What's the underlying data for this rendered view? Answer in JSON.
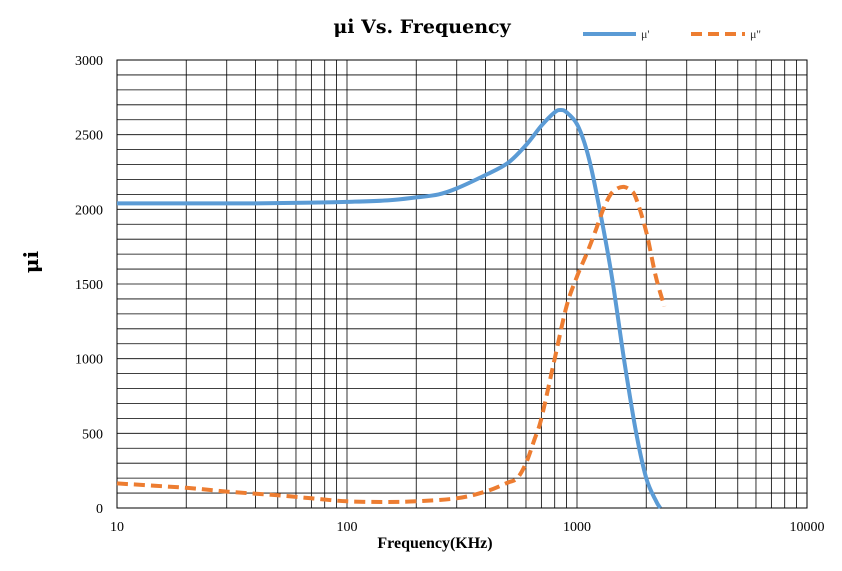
{
  "chart_data": {
    "type": "line",
    "title": "μi Vs. Frequency",
    "xlabel": "Frequency(KHz)",
    "ylabel": "μi",
    "xscale": "log",
    "xlim": [
      10,
      10000
    ],
    "ylim": [
      0,
      3000
    ],
    "x_tick_labels": [
      "10",
      "100",
      "1000",
      "10000"
    ],
    "y_tick_labels": [
      "0",
      "500",
      "1000",
      "1500",
      "2000",
      "2500",
      "3000"
    ],
    "grid": true,
    "legend_position": "top-right",
    "series": [
      {
        "name": "μ'",
        "color": "#5B9BD5",
        "style": "solid",
        "x": [
          10,
          20,
          40,
          70,
          100,
          150,
          200,
          250,
          300,
          400,
          500,
          600,
          700,
          800,
          850,
          900,
          1000,
          1100,
          1200,
          1400,
          1600,
          1800,
          2000,
          2200,
          2300
        ],
        "y": [
          2040,
          2040,
          2040,
          2045,
          2050,
          2060,
          2080,
          2100,
          2140,
          2230,
          2310,
          2430,
          2560,
          2650,
          2665,
          2650,
          2570,
          2400,
          2150,
          1600,
          1000,
          520,
          200,
          50,
          0
        ]
      },
      {
        "name": "μ''",
        "color": "#ED7D31",
        "style": "dashed",
        "x": [
          10,
          20,
          30,
          50,
          70,
          100,
          150,
          200,
          300,
          400,
          500,
          550,
          600,
          650,
          700,
          800,
          900,
          1000,
          1100,
          1200,
          1300,
          1400,
          1500,
          1600,
          1700,
          1800,
          2000,
          2200,
          2400
        ],
        "y": [
          165,
          135,
          110,
          85,
          65,
          45,
          40,
          45,
          65,
          110,
          170,
          200,
          300,
          450,
          600,
          1000,
          1350,
          1550,
          1700,
          1850,
          2000,
          2100,
          2140,
          2150,
          2130,
          2080,
          1850,
          1550,
          1350
        ]
      }
    ]
  }
}
